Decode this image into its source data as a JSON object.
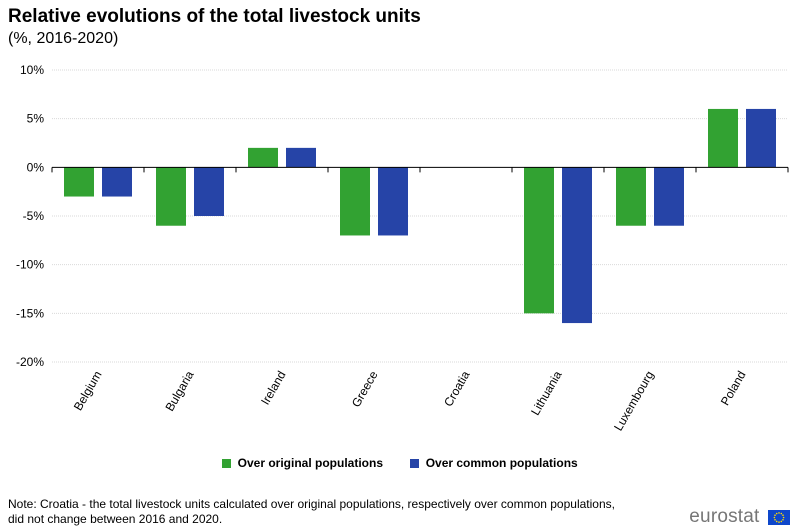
{
  "chart_data": {
    "type": "bar",
    "title": "Relative evolutions of the total livestock units",
    "subtitle": "(%, 2016-2020)",
    "categories": [
      "Belgium",
      "Bulgaria",
      "Ireland",
      "Greece",
      "Croatia",
      "Lithuania",
      "Luxembourg",
      "Poland"
    ],
    "series": [
      {
        "name": "Over original populations",
        "color": "#32A232",
        "values": [
          -3,
          -6,
          2,
          -7,
          0,
          -15,
          -6,
          6
        ]
      },
      {
        "name": "Over common populations",
        "color": "#2644A7",
        "values": [
          -3,
          -5,
          2,
          -7,
          0,
          -16,
          -6,
          6
        ]
      }
    ],
    "ylim": [
      -20,
      10
    ],
    "yticks": [
      10,
      5,
      0,
      -5,
      -10,
      -15,
      -20
    ],
    "ytick_labels": [
      "10%",
      "5%",
      "0%",
      "-5%",
      "-10%",
      "-15%",
      "-20%"
    ],
    "xlabel": "",
    "ylabel": "",
    "grid": true,
    "legend_position": "bottom"
  },
  "note": {
    "line1": "Note: Croatia - the total livestock units calculated over original populations, respectively over common populations,",
    "line2": "did not change between 2016 and 2020."
  },
  "brand": {
    "name": "eurostat",
    "flag_icon": "eu-flag-icon"
  }
}
